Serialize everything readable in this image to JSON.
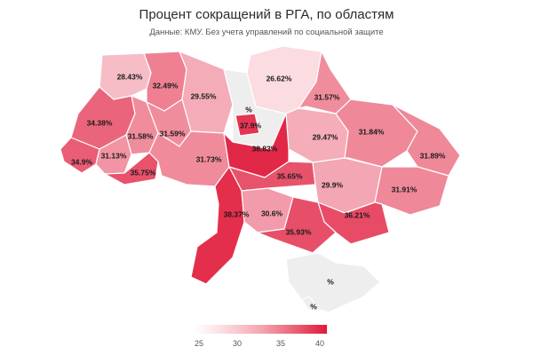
{
  "title": "Процент сокращений в РГА, по областям",
  "subtitle": "Данные: КМУ. Без учета управлений по социальной защите",
  "colors": {
    "low": "#ffffff",
    "high": "#e0193a",
    "missing": "#eeeeee"
  },
  "legend": {
    "min": 25,
    "max": 40,
    "ticks": [
      "25",
      "30",
      "35",
      "40"
    ]
  },
  "regions": [
    {
      "key": "volyn",
      "label": "28.43%",
      "value": 28.43
    },
    {
      "key": "rivne",
      "label": "32.49%",
      "value": 32.49
    },
    {
      "key": "zhytomyr",
      "label": "29.55%",
      "value": 29.55
    },
    {
      "key": "kyiv_oblast",
      "label": "%",
      "value": null
    },
    {
      "key": "chernihiv",
      "label": "26.62%",
      "value": 26.62
    },
    {
      "key": "sumy",
      "label": "31.57%",
      "value": 31.57
    },
    {
      "key": "lviv",
      "label": "34.38%",
      "value": 34.38
    },
    {
      "key": "ternopil",
      "label": "31.58%",
      "value": 31.58
    },
    {
      "key": "khmelnytskyi",
      "label": "31.59%",
      "value": 31.59
    },
    {
      "key": "kyiv",
      "label": "37.9%",
      "value": 37.9
    },
    {
      "key": "poltava",
      "label": "29.47%",
      "value": 29.47
    },
    {
      "key": "kharkiv",
      "label": "31.84%",
      "value": 31.84
    },
    {
      "key": "zakarpattia",
      "label": "34.9%",
      "value": 34.9
    },
    {
      "key": "ivano_frankivsk",
      "label": "31.13%",
      "value": 31.13
    },
    {
      "key": "chernivtsi",
      "label": "35.75%",
      "value": 35.75
    },
    {
      "key": "vinnytsia",
      "label": "31.73%",
      "value": 31.73
    },
    {
      "key": "cherkasy",
      "label": "38.83%",
      "value": 38.83
    },
    {
      "key": "kirovohrad",
      "label": "35.65%",
      "value": 35.65
    },
    {
      "key": "dnipro",
      "label": "29.9%",
      "value": 29.9
    },
    {
      "key": "luhansk",
      "label": "31.89%",
      "value": 31.89
    },
    {
      "key": "donetsk",
      "label": "31.91%",
      "value": 31.91
    },
    {
      "key": "odesa",
      "label": "38.37%",
      "value": 38.37
    },
    {
      "key": "mykolaiv",
      "label": "30.6%",
      "value": 30.6
    },
    {
      "key": "zaporizhzhia",
      "label": "36.21%",
      "value": 36.21
    },
    {
      "key": "kherson",
      "label": "35.93%",
      "value": 35.93
    },
    {
      "key": "crimea",
      "label": "%",
      "value": null
    },
    {
      "key": "sevastopol",
      "label": "%",
      "value": null
    }
  ]
}
